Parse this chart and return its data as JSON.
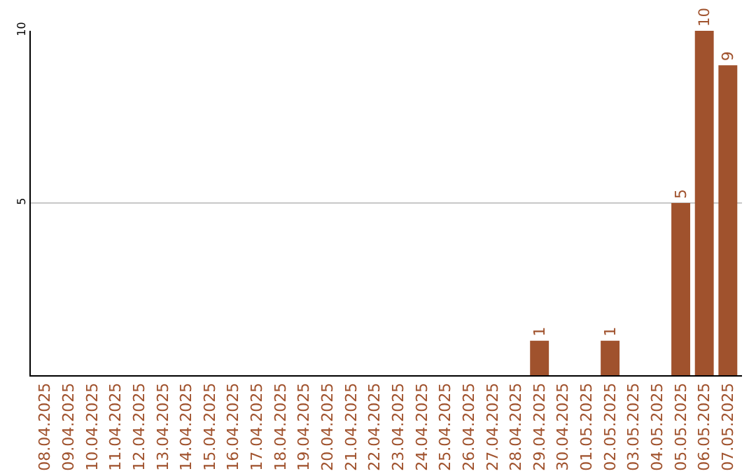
{
  "chart_data": {
    "type": "bar",
    "categories": [
      "08.04.2025",
      "09.04.2025",
      "10.04.2025",
      "11.04.2025",
      "12.04.2025",
      "13.04.2025",
      "14.04.2025",
      "15.04.2025",
      "16.04.2025",
      "17.04.2025",
      "18.04.2025",
      "19.04.2025",
      "20.04.2025",
      "21.04.2025",
      "22.04.2025",
      "23.04.2025",
      "24.04.2025",
      "25.04.2025",
      "26.04.2025",
      "27.04.2025",
      "28.04.2025",
      "29.04.2025",
      "30.04.2025",
      "01.05.2025",
      "02.05.2025",
      "03.05.2025",
      "04.05.2025",
      "05.05.2025",
      "06.05.2025",
      "07.05.2025"
    ],
    "values": [
      0,
      0,
      0,
      0,
      0,
      0,
      0,
      0,
      0,
      0,
      0,
      0,
      0,
      0,
      0,
      0,
      0,
      0,
      0,
      0,
      0,
      1,
      0,
      0,
      1,
      0,
      0,
      5,
      10,
      9
    ],
    "value_labels": [
      null,
      null,
      null,
      null,
      null,
      null,
      null,
      null,
      null,
      null,
      null,
      null,
      null,
      null,
      null,
      null,
      null,
      null,
      null,
      null,
      null,
      "1",
      null,
      null,
      "1",
      null,
      null,
      "5",
      "10",
      "9"
    ],
    "color": "#a0522d",
    "ylim": [
      0,
      10
    ],
    "yticks": [
      5,
      10
    ],
    "grid": "y"
  }
}
